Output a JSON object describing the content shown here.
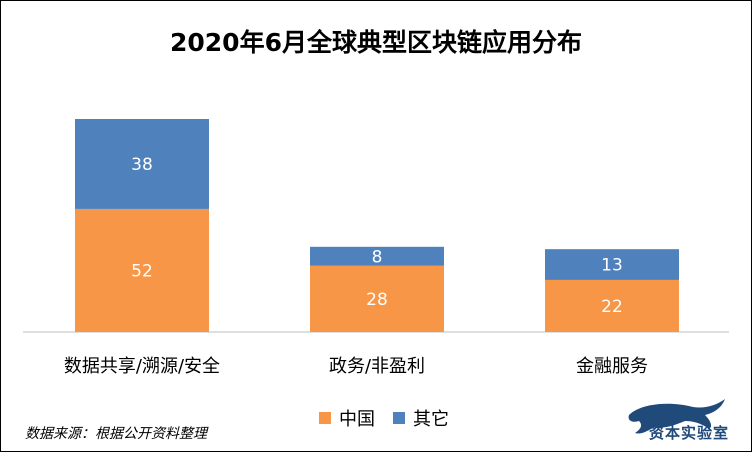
{
  "chart_data": {
    "type": "bar",
    "stacked": true,
    "title": "2020年6月全球典型区块链应用分布",
    "categories": [
      "数据共享/溯源/安全",
      "政务/非盈利",
      "金融服务"
    ],
    "series": [
      {
        "name": "中国",
        "values": [
          52,
          28,
          22
        ],
        "color": "#F79646"
      },
      {
        "name": "其它",
        "values": [
          38,
          8,
          13
        ],
        "color": "#4F81BD"
      }
    ],
    "ylim": [
      0,
      90
    ],
    "grid": false,
    "legend": "bottom"
  },
  "footer": {
    "source": "数据来源：根据公开资料整理",
    "brand": "资本实验室"
  }
}
